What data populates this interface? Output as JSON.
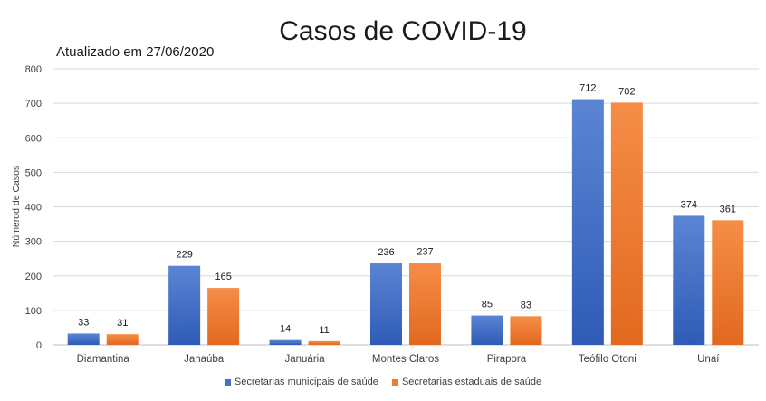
{
  "chart_data": {
    "type": "bar",
    "title": "Casos de COVID-19",
    "subtitle": "Atualizado em 27/06/2020",
    "xlabel": "",
    "ylabel": "Númerod de Casos",
    "ylim": [
      0,
      800
    ],
    "yticks": [
      0,
      100,
      200,
      300,
      400,
      500,
      600,
      700,
      800
    ],
    "categories": [
      "Diamantina",
      "Janaúba",
      "Januária",
      "Montes Claros",
      "Pirapora",
      "Teófilo Otoni",
      "Unaí"
    ],
    "series": [
      {
        "name": "Secretarias municipais de saúde",
        "color": "#4472c4",
        "values": [
          33,
          229,
          14,
          236,
          85,
          712,
          374
        ]
      },
      {
        "name": "Secretarias estaduais de saúde",
        "color": "#ed7d31",
        "values": [
          31,
          165,
          11,
          237,
          83,
          702,
          361
        ]
      }
    ],
    "grid": true,
    "legend": "bottom",
    "data_labels": true
  }
}
